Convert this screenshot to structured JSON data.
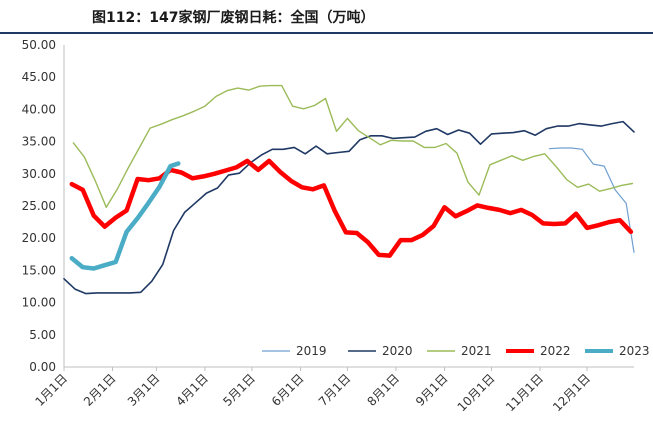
{
  "chart_data": {
    "type": "line",
    "title": "图112：147家钢厂废钢日耗：全国（万吨）",
    "xlabel": "",
    "ylabel": "",
    "ylim": [
      0,
      50
    ],
    "yticks": [
      "0.00",
      "5.00",
      "10.00",
      "15.00",
      "20.00",
      "25.00",
      "30.00",
      "35.00",
      "40.00",
      "45.00",
      "50.00"
    ],
    "xticks": [
      "1月1日",
      "2月1日",
      "3月1日",
      "4月1日",
      "5月1日",
      "6月1日",
      "7月1日",
      "8月1日",
      "9月1日",
      "10月1日",
      "11月1日",
      "12月1日"
    ],
    "x_unit": "day-of-year",
    "x_tick_days": [
      1,
      32,
      60,
      91,
      121,
      152,
      182,
      213,
      244,
      274,
      305,
      335
    ],
    "grid": false,
    "legend_position": "bottom",
    "series": [
      {
        "name": "2019",
        "color": "#6f9fd0",
        "width": 1.2,
        "x": [
          311,
          318,
          325,
          332,
          339,
          346,
          353,
          360,
          365
        ],
        "values": [
          33.9,
          34.0,
          34.0,
          33.8,
          31.5,
          31.2,
          27.5,
          25.4,
          17.8
        ]
      },
      {
        "name": "2020",
        "color": "#1f3864",
        "width": 1.6,
        "x": [
          1,
          8,
          15,
          22,
          29,
          36,
          43,
          50,
          57,
          64,
          71,
          78,
          85,
          92,
          99,
          106,
          113,
          120,
          127,
          134,
          141,
          148,
          155,
          162,
          169,
          176,
          183,
          190,
          197,
          204,
          211,
          218,
          225,
          232,
          239,
          246,
          253,
          260,
          267,
          274,
          281,
          288,
          295,
          302,
          309,
          316,
          323,
          330,
          337,
          344,
          351,
          358,
          365
        ],
        "values": [
          13.7,
          12.1,
          11.4,
          11.5,
          11.5,
          11.5,
          11.5,
          11.6,
          13.3,
          15.9,
          21.2,
          24.0,
          25.5,
          27.0,
          27.8,
          29.8,
          30.1,
          31.7,
          32.9,
          33.8,
          33.8,
          34.1,
          33.1,
          34.3,
          33.1,
          33.3,
          33.5,
          35.3,
          35.9,
          35.9,
          35.5,
          35.6,
          35.7,
          36.6,
          37.0,
          36.1,
          36.8,
          36.3,
          34.6,
          36.2,
          36.3,
          36.4,
          36.7,
          36.0,
          37.0,
          37.4,
          37.4,
          37.8,
          37.6,
          37.4,
          37.8,
          38.1,
          36.5
        ]
      },
      {
        "name": "2021",
        "color": "#9bbb59",
        "width": 1.4,
        "x": [
          7,
          14,
          21,
          28,
          35,
          42,
          49,
          56,
          63,
          70,
          77,
          84,
          91,
          98,
          105,
          112,
          119,
          126,
          133,
          140,
          147,
          154,
          161,
          168,
          175,
          182,
          189,
          196,
          203,
          210,
          217,
          224,
          231,
          238,
          245,
          252,
          259,
          266,
          273,
          280,
          287,
          294,
          301,
          308,
          315,
          322,
          329,
          336,
          343,
          350,
          357,
          364
        ],
        "values": [
          34.8,
          32.6,
          28.9,
          24.8,
          27.6,
          30.9,
          34.0,
          37.1,
          37.7,
          38.4,
          39.0,
          39.7,
          40.5,
          42.0,
          42.9,
          43.3,
          43.0,
          43.6,
          43.7,
          43.7,
          40.5,
          40.1,
          40.6,
          41.7,
          36.6,
          38.6,
          36.7,
          35.6,
          34.5,
          35.2,
          35.1,
          35.1,
          34.1,
          34.1,
          34.7,
          33.2,
          28.7,
          26.7,
          31.4,
          32.1,
          32.8,
          32.1,
          32.7,
          33.1,
          31.2,
          29.1,
          27.9,
          28.4,
          27.3,
          27.7,
          28.2,
          28.5
        ]
      },
      {
        "name": "2022",
        "color": "#ff0000",
        "width": 4.5,
        "x": [
          6,
          13,
          20,
          27,
          34,
          41,
          48,
          55,
          62,
          69,
          76,
          83,
          90,
          97,
          104,
          111,
          118,
          125,
          132,
          139,
          146,
          153,
          160,
          167,
          174,
          181,
          188,
          195,
          202,
          209,
          216,
          223,
          230,
          237,
          244,
          251,
          258,
          265,
          272,
          279,
          286,
          293,
          300,
          307,
          314,
          321,
          328,
          335,
          342,
          349,
          356,
          363
        ],
        "values": [
          28.4,
          27.5,
          23.5,
          21.8,
          23.2,
          24.3,
          29.2,
          29.0,
          29.3,
          30.6,
          30.2,
          29.3,
          29.6,
          30.0,
          30.5,
          31.0,
          32.0,
          30.6,
          32.0,
          30.3,
          28.9,
          27.9,
          27.6,
          28.2,
          24.2,
          20.9,
          20.8,
          19.4,
          17.4,
          17.3,
          19.7,
          19.7,
          20.5,
          21.9,
          24.8,
          23.4,
          24.2,
          25.1,
          24.7,
          24.4,
          23.9,
          24.4,
          23.6,
          22.3,
          22.2,
          22.3,
          23.8,
          21.6,
          22.0,
          22.5,
          22.8,
          21.0
        ]
      },
      {
        "name": "2023",
        "color": "#4bacc6",
        "width": 4.5,
        "x": [
          6,
          13,
          20,
          27,
          34,
          41,
          48,
          55,
          62,
          69,
          74
        ],
        "values": [
          16.9,
          15.5,
          15.3,
          15.8,
          16.3,
          21.0,
          23.1,
          25.5,
          28.0,
          31.2,
          31.6
        ]
      }
    ]
  }
}
